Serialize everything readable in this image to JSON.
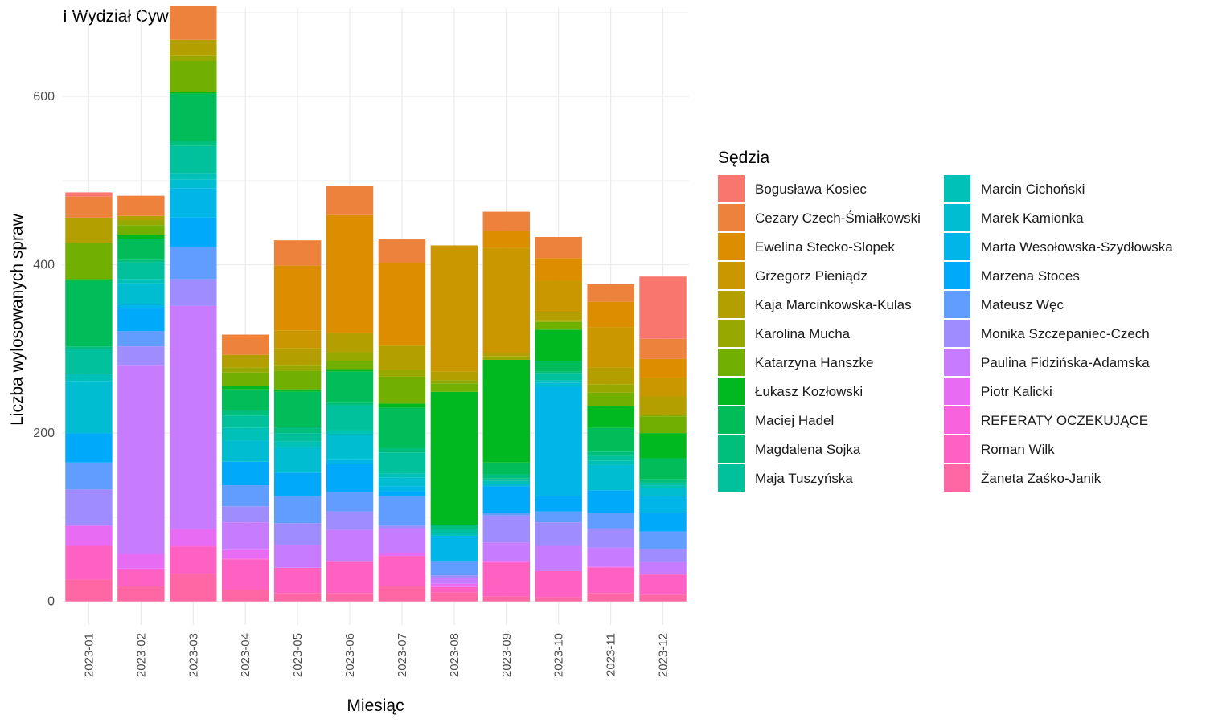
{
  "chart_data": {
    "type": "bar",
    "stacked": true,
    "title": "I Wydział Cywilny",
    "xlabel": "Miesiąc",
    "ylabel": "Liczba wylosowanych spraw",
    "ylim": [
      -28,
      705
    ],
    "yticks": [
      0,
      200,
      400,
      600
    ],
    "grid": true,
    "legend_position": "right",
    "legend_title": "Sędzia",
    "categories": [
      "2023-01",
      "2023-02",
      "2023-03",
      "2023-04",
      "2023-05",
      "2023-06",
      "2023-07",
      "2023-08",
      "2023-09",
      "2023-10",
      "2023-11",
      "2023-12"
    ],
    "series": [
      {
        "name": "Bogusława Kosiec",
        "color": "#F8766D",
        "values": [
          5,
          0,
          0,
          0,
          0,
          0,
          0,
          0,
          0,
          0,
          0,
          74
        ]
      },
      {
        "name": "Cezary Czech-Śmiałkowski",
        "color": "#EC823C",
        "values": [
          25,
          24,
          40,
          24,
          30,
          35,
          29,
          0,
          23,
          25,
          21,
          24
        ]
      },
      {
        "name": "Ewelina Stecko-Slopek",
        "color": "#DD8D00",
        "values": [
          0,
          0,
          0,
          0,
          77,
          140,
          98,
          0,
          20,
          27,
          30,
          22
        ]
      },
      {
        "name": "Grzegorz Pieniądz",
        "color": "#CA9700",
        "values": [
          0,
          0,
          0,
          0,
          21,
          0,
          0,
          150,
          125,
          37,
          48,
          22
        ]
      },
      {
        "name": "Kaja Marcinkowska-Kulas",
        "color": "#B3A000",
        "values": [
          30,
          5,
          19,
          15,
          20,
          23,
          29,
          10,
          4,
          10,
          20,
          22
        ]
      },
      {
        "name": "Karolina Mucha",
        "color": "#97A900",
        "values": [
          0,
          6,
          6,
          6,
          7,
          10,
          8,
          4,
          4,
          2,
          10,
          2
        ]
      },
      {
        "name": "Katarzyna Hanszke",
        "color": "#71B000",
        "values": [
          43,
          12,
          37,
          16,
          22,
          10,
          32,
          10,
          0,
          9,
          16,
          20
        ]
      },
      {
        "name": "Łukasz Kozłowski",
        "color": "#00B81F",
        "values": [
          2,
          4,
          2,
          4,
          3,
          3,
          5,
          158,
          122,
          37,
          26,
          30
        ]
      },
      {
        "name": "Maciej Hadel",
        "color": "#00BC59",
        "values": [
          78,
          25,
          56,
          25,
          42,
          37,
          48,
          0,
          14,
          13,
          28,
          25
        ]
      },
      {
        "name": "Magdalena Sojka",
        "color": "#00BF7D",
        "values": [
          3,
          3,
          6,
          6,
          7,
          3,
          5,
          5,
          5,
          2,
          5,
          4
        ]
      },
      {
        "name": "Maja Tuszyńska",
        "color": "#00C19C",
        "values": [
          30,
          20,
          32,
          15,
          10,
          30,
          25,
          5,
          3,
          8,
          6,
          3
        ]
      },
      {
        "name": "Marcin Cichoński",
        "color": "#00C1B7",
        "values": [
          8,
          5,
          8,
          15,
          7,
          5,
          5,
          3,
          3,
          3,
          5,
          3
        ]
      },
      {
        "name": "Marek Kamionka",
        "color": "#00BDD1",
        "values": [
          62,
          25,
          10,
          25,
          30,
          30,
          10,
          0,
          3,
          5,
          30,
          10
        ]
      },
      {
        "name": "Marta Wesołowska-Szydłowska",
        "color": "#00B5E7",
        "values": [
          0,
          5,
          35,
          0,
          0,
          5,
          6,
          30,
          0,
          130,
          0,
          20
        ]
      },
      {
        "name": "Marzena Stoces",
        "color": "#00A9FA",
        "values": [
          35,
          27,
          35,
          28,
          28,
          33,
          6,
          0,
          32,
          18,
          27,
          22
        ]
      },
      {
        "name": "Mateusz Węc",
        "color": "#619CFF",
        "values": [
          32,
          18,
          38,
          25,
          32,
          23,
          35,
          17,
          3,
          13,
          18,
          21
        ]
      },
      {
        "name": "Monika Szczepaniec-Czech",
        "color": "#9F8CFF",
        "values": [
          43,
          22,
          32,
          19,
          26,
          22,
          3,
          3,
          32,
          28,
          23,
          15
        ]
      },
      {
        "name": "Paulina Fidzińska-Adamska",
        "color": "#C77CFF",
        "values": [
          0,
          225,
          265,
          33,
          27,
          37,
          30,
          7,
          22,
          30,
          23,
          15
        ]
      },
      {
        "name": "Piotr Kalicki",
        "color": "#E76BF3",
        "values": [
          24,
          17,
          20,
          10,
          0,
          0,
          3,
          4,
          0,
          0,
          0,
          0
        ]
      },
      {
        "name": "REFERATY OCZEKUJĄCE",
        "color": "#F962DD",
        "values": [
          0,
          2,
          1,
          1,
          0,
          0,
          0,
          0,
          2,
          0,
          1,
          0
        ]
      },
      {
        "name": "Roman Wilk",
        "color": "#FF61C3",
        "values": [
          40,
          19,
          32,
          36,
          30,
          38,
          36,
          6,
          40,
          31,
          30,
          24
        ]
      },
      {
        "name": "Żaneta Zaśko-Janik",
        "color": "#FF67A4",
        "values": [
          26,
          18,
          33,
          14,
          10,
          10,
          18,
          11,
          6,
          5,
          10,
          8
        ]
      }
    ]
  }
}
